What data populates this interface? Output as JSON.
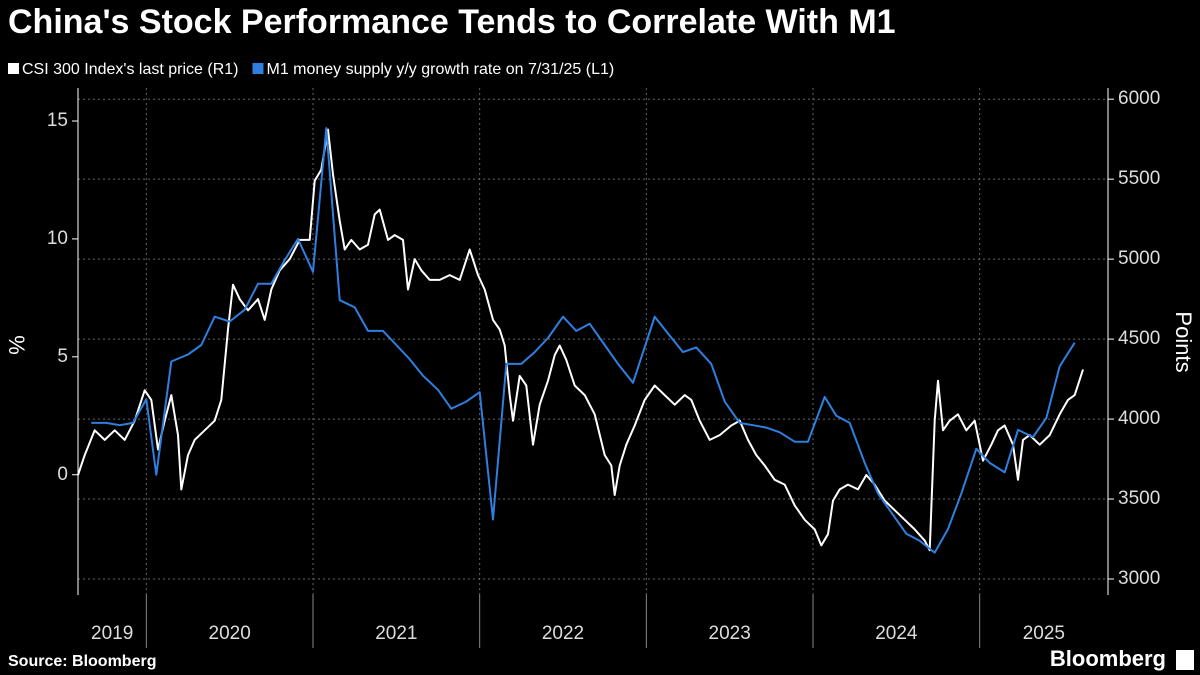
{
  "chart_data": {
    "type": "line",
    "title": "China's Stock Performance Tends to Correlate With M1",
    "ylabel": "%",
    "y2label": "Points",
    "source": "Source: Bloomberg",
    "brand": "Bloomberg",
    "grid": true,
    "xlim": [
      2019.59,
      2025.77
    ],
    "xticks": [
      2019,
      2020,
      2021,
      2022,
      2023,
      2024,
      2025
    ],
    "ylim": [
      -5.1,
      16.4
    ],
    "yticks": [
      0,
      5,
      10,
      15
    ],
    "y2lim": [
      2900,
      6070
    ],
    "y2ticks": [
      3000,
      3500,
      4000,
      4500,
      5000,
      5500,
      6000
    ],
    "series": [
      {
        "name": "CSI 300 Index's last price (R1)",
        "color": "#ffffff",
        "axis": "y2",
        "x": [
          2019.59,
          2019.63,
          2019.69,
          2019.75,
          2019.81,
          2019.87,
          2019.93,
          2019.99,
          2020.03,
          2020.07,
          2020.11,
          2020.15,
          2020.19,
          2020.21,
          2020.25,
          2020.29,
          2020.35,
          2020.41,
          2020.45,
          2020.49,
          2020.52,
          2020.56,
          2020.61,
          2020.67,
          2020.71,
          2020.75,
          2020.8,
          2020.86,
          2020.92,
          2020.98,
          2021.01,
          2021.05,
          2021.09,
          2021.12,
          2021.16,
          2021.19,
          2021.23,
          2021.28,
          2021.33,
          2021.37,
          2021.4,
          2021.45,
          2021.49,
          2021.54,
          2021.57,
          2021.61,
          2021.65,
          2021.7,
          2021.76,
          2021.82,
          2021.88,
          2021.94,
          2021.99,
          2022.03,
          2022.08,
          2022.12,
          2022.15,
          2022.18,
          2022.2,
          2022.24,
          2022.28,
          2022.32,
          2022.36,
          2022.41,
          2022.45,
          2022.48,
          2022.52,
          2022.57,
          2022.63,
          2022.69,
          2022.75,
          2022.79,
          2022.81,
          2022.84,
          2022.88,
          2022.93,
          2022.99,
          2023.05,
          2023.11,
          2023.17,
          2023.23,
          2023.27,
          2023.32,
          2023.38,
          2023.44,
          2023.51,
          2023.56,
          2023.61,
          2023.66,
          2023.71,
          2023.77,
          2023.83,
          2023.89,
          2023.95,
          2024.01,
          2024.05,
          2024.09,
          2024.12,
          2024.16,
          2024.21,
          2024.27,
          2024.32,
          2024.37,
          2024.43,
          2024.49,
          2024.55,
          2024.61,
          2024.67,
          2024.7,
          2024.73,
          2024.75,
          2024.78,
          2024.82,
          2024.87,
          2024.92,
          2024.97,
          2025.02,
          2025.07,
          2025.11,
          2025.15,
          2025.2,
          2025.23,
          2025.26,
          2025.3,
          2025.36,
          2025.42,
          2025.48,
          2025.53,
          2025.57,
          2025.62
        ],
        "values": [
          3650,
          3775,
          3930,
          3870,
          3930,
          3870,
          3990,
          4180,
          4120,
          3810,
          3990,
          4150,
          3900,
          3560,
          3775,
          3870,
          3930,
          3990,
          4120,
          4560,
          4840,
          4750,
          4680,
          4750,
          4620,
          4810,
          4930,
          5000,
          5120,
          5120,
          5490,
          5560,
          5810,
          5530,
          5240,
          5060,
          5120,
          5060,
          5090,
          5280,
          5310,
          5120,
          5150,
          5120,
          4810,
          5000,
          4930,
          4870,
          4870,
          4900,
          4870,
          5060,
          4900,
          4810,
          4620,
          4560,
          4460,
          4150,
          3990,
          4270,
          4210,
          3840,
          4090,
          4240,
          4400,
          4460,
          4370,
          4210,
          4150,
          4030,
          3775,
          3710,
          3525,
          3710,
          3840,
          3960,
          4120,
          4210,
          4150,
          4090,
          4150,
          4120,
          3990,
          3870,
          3900,
          3960,
          3990,
          3870,
          3775,
          3710,
          3620,
          3590,
          3460,
          3370,
          3310,
          3210,
          3280,
          3490,
          3560,
          3590,
          3560,
          3650,
          3590,
          3490,
          3430,
          3370,
          3310,
          3240,
          3180,
          3990,
          4240,
          3930,
          3990,
          4030,
          3930,
          3990,
          3740,
          3840,
          3930,
          3960,
          3840,
          3620,
          3870,
          3900,
          3840,
          3900,
          4030,
          4120,
          4150,
          4310
        ]
      },
      {
        "name": "M1 money supply y/y growth rate on 7/31/25 (L1)",
        "color": "#2f7fe0",
        "x": [
          2019.67,
          2019.76,
          2019.84,
          2019.92,
          2020.0,
          2020.06,
          2020.15,
          2020.25,
          2020.33,
          2020.41,
          2020.5,
          2020.59,
          2020.67,
          2020.75,
          2020.83,
          2020.91,
          2021.0,
          2021.08,
          2021.16,
          2021.25,
          2021.33,
          2021.42,
          2021.5,
          2021.58,
          2021.66,
          2021.75,
          2021.83,
          2021.92,
          2022.0,
          2022.08,
          2022.16,
          2022.25,
          2022.33,
          2022.41,
          2022.5,
          2022.58,
          2022.66,
          2022.75,
          2022.83,
          2022.92,
          2023.05,
          2023.14,
          2023.22,
          2023.3,
          2023.39,
          2023.47,
          2023.56,
          2023.64,
          2023.72,
          2023.8,
          2023.89,
          2023.97,
          2024.07,
          2024.14,
          2024.22,
          2024.31,
          2024.39,
          2024.48,
          2024.56,
          2024.64,
          2024.73,
          2024.81,
          2024.89,
          2024.98,
          2025.06,
          2025.15,
          2025.23,
          2025.32,
          2025.4,
          2025.48,
          2025.57
        ],
        "values": [
          2.2,
          2.2,
          2.1,
          2.2,
          3.2,
          0.0,
          4.8,
          5.1,
          5.5,
          6.7,
          6.5,
          7.0,
          8.1,
          8.1,
          9.1,
          10.0,
          8.6,
          14.7,
          7.4,
          7.1,
          6.1,
          6.1,
          5.5,
          4.9,
          4.2,
          3.6,
          2.8,
          3.1,
          3.5,
          -1.9,
          4.7,
          4.7,
          5.2,
          5.8,
          6.7,
          6.1,
          6.4,
          5.5,
          4.7,
          3.9,
          6.7,
          5.9,
          5.2,
          5.4,
          4.7,
          3.1,
          2.2,
          2.1,
          2.0,
          1.8,
          1.4,
          1.4,
          3.3,
          2.5,
          2.2,
          0.5,
          -0.8,
          -1.7,
          -2.5,
          -2.8,
          -3.3,
          -2.3,
          -0.8,
          1.1,
          0.5,
          0.1,
          1.9,
          1.6,
          2.4,
          4.6,
          5.6
        ]
      }
    ]
  }
}
